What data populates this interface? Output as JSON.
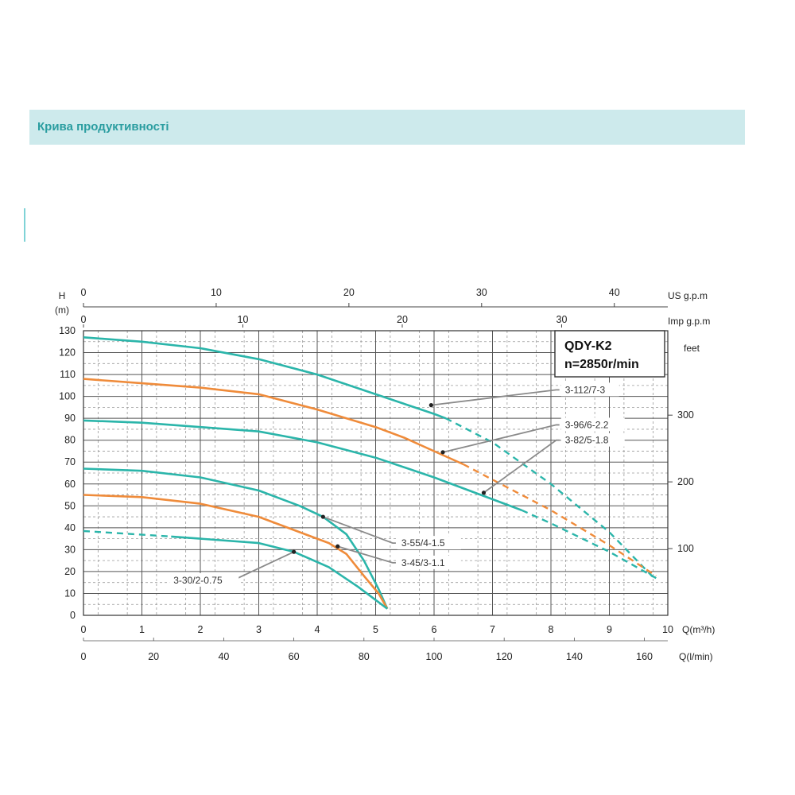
{
  "header": {
    "title": "Крива продуктивності"
  },
  "chart_data": {
    "type": "line",
    "title": "",
    "model": "QDY-K2",
    "speed": "n=2850r/min",
    "axes": {
      "y_left": {
        "label_top": "H",
        "label_unit": "(m)",
        "range": [
          0,
          130
        ],
        "ticks": [
          "0",
          "10",
          "20",
          "30",
          "40",
          "50",
          "60",
          "70",
          "80",
          "90",
          "100",
          "110",
          "120",
          "130"
        ]
      },
      "y_right": {
        "label": "feet",
        "ticks": [
          "100",
          "200",
          "300"
        ],
        "values": [
          100,
          200,
          300
        ]
      },
      "x_primary": {
        "label": "Q(m³/h)",
        "range": [
          0,
          10
        ],
        "ticks": [
          "0",
          "1",
          "2",
          "3",
          "4",
          "5",
          "6",
          "7",
          "8",
          "9",
          "10"
        ]
      },
      "x_lmin": {
        "label": "Q(l/min)",
        "ticks": [
          "0",
          "20",
          "40",
          "60",
          "80",
          "100",
          "120",
          "140",
          "160"
        ],
        "values": [
          0,
          20,
          40,
          60,
          80,
          100,
          120,
          140,
          160
        ]
      },
      "x_usgpm": {
        "label": "US g.p.m",
        "ticks": [
          "0",
          "10",
          "20",
          "30",
          "40"
        ],
        "values": [
          0,
          10,
          20,
          30,
          40
        ]
      },
      "x_impgpm": {
        "label": "Imp g.p.m",
        "ticks": [
          "0",
          "10",
          "20",
          "30"
        ],
        "values": [
          0,
          10,
          20,
          30
        ]
      }
    },
    "grid": true,
    "colors": {
      "teal": "#2bb5aa",
      "orange": "#ef8b3a",
      "grid": "#555555",
      "leader": "#8a8a8a"
    },
    "series": [
      {
        "name": "3-112/7-3",
        "color": "#2bb5aa",
        "solid": [
          [
            0,
            127
          ],
          [
            1,
            125
          ],
          [
            2,
            122
          ],
          [
            3,
            117
          ],
          [
            4,
            110
          ],
          [
            5,
            101
          ],
          [
            6,
            92
          ],
          [
            6.2,
            90
          ]
        ],
        "dashed": [
          [
            6.2,
            90
          ],
          [
            7,
            79
          ],
          [
            8,
            60
          ],
          [
            9,
            38
          ],
          [
            9.8,
            16
          ]
        ],
        "marker": [
          5.95,
          96
        ],
        "label_pos": [
          8.2,
          103
        ]
      },
      {
        "name": "3-96/6-2.2",
        "color": "#ef8b3a",
        "solid": [
          [
            0,
            108
          ],
          [
            1,
            106
          ],
          [
            2,
            104
          ],
          [
            3,
            101
          ],
          [
            4,
            94
          ],
          [
            5,
            86
          ],
          [
            5.5,
            81
          ],
          [
            6,
            75
          ],
          [
            6.5,
            69
          ]
        ],
        "dashed": [
          [
            6.5,
            69
          ],
          [
            7,
            62
          ],
          [
            8,
            48
          ],
          [
            9,
            32
          ],
          [
            9.8,
            18
          ]
        ],
        "marker": [
          6.15,
          74.5
        ],
        "label_pos": [
          8.2,
          87
        ]
      },
      {
        "name": "3-82/5-1.8",
        "color": "#2bb5aa",
        "solid": [
          [
            0,
            89
          ],
          [
            1,
            88
          ],
          [
            2,
            86
          ],
          [
            3,
            84
          ],
          [
            4,
            79
          ],
          [
            5,
            72
          ],
          [
            6,
            63
          ],
          [
            7,
            53
          ],
          [
            7.5,
            48
          ]
        ],
        "dashed": [
          [
            7.5,
            48
          ],
          [
            8,
            42
          ],
          [
            9,
            29
          ],
          [
            9.8,
            17
          ]
        ],
        "marker": [
          6.85,
          56
        ],
        "label_pos": [
          8.2,
          80
        ]
      },
      {
        "name": "3-55/4-1.5",
        "color": "#2bb5aa",
        "solid": [
          [
            0,
            67
          ],
          [
            1,
            66
          ],
          [
            2,
            63
          ],
          [
            3,
            57
          ],
          [
            3.7,
            50
          ],
          [
            4.1,
            45
          ],
          [
            4.5,
            37
          ],
          [
            4.8,
            25
          ],
          [
            5.05,
            12
          ],
          [
            5.2,
            3
          ]
        ],
        "dashed": [],
        "marker": [
          4.1,
          45
        ],
        "label_pos": [
          5.4,
          33
        ]
      },
      {
        "name": "3-45/3-1.1",
        "color": "#ef8b3a",
        "solid": [
          [
            0,
            55
          ],
          [
            1,
            54
          ],
          [
            2,
            51
          ],
          [
            3,
            45
          ],
          [
            3.7,
            38
          ],
          [
            4.2,
            33
          ],
          [
            4.5,
            28
          ],
          [
            4.8,
            18
          ],
          [
            5.05,
            10
          ],
          [
            5.2,
            3
          ]
        ],
        "dashed": [],
        "marker": [
          4.35,
          31.5
        ],
        "label_pos": [
          5.4,
          24
        ]
      },
      {
        "name": "3-30/2-0.75",
        "color": "#2bb5aa",
        "solid": [
          [
            1.5,
            36
          ],
          [
            2,
            35
          ],
          [
            3,
            33
          ],
          [
            3.6,
            29
          ],
          [
            4.2,
            22
          ],
          [
            4.7,
            13
          ],
          [
            5.0,
            7
          ],
          [
            5.2,
            3
          ]
        ],
        "dashed": [
          [
            0,
            38.5
          ],
          [
            0.6,
            37.5
          ],
          [
            1.5,
            36
          ]
        ],
        "marker": [
          3.6,
          29
        ],
        "label_pos": [
          1.5,
          16
        ]
      }
    ]
  }
}
